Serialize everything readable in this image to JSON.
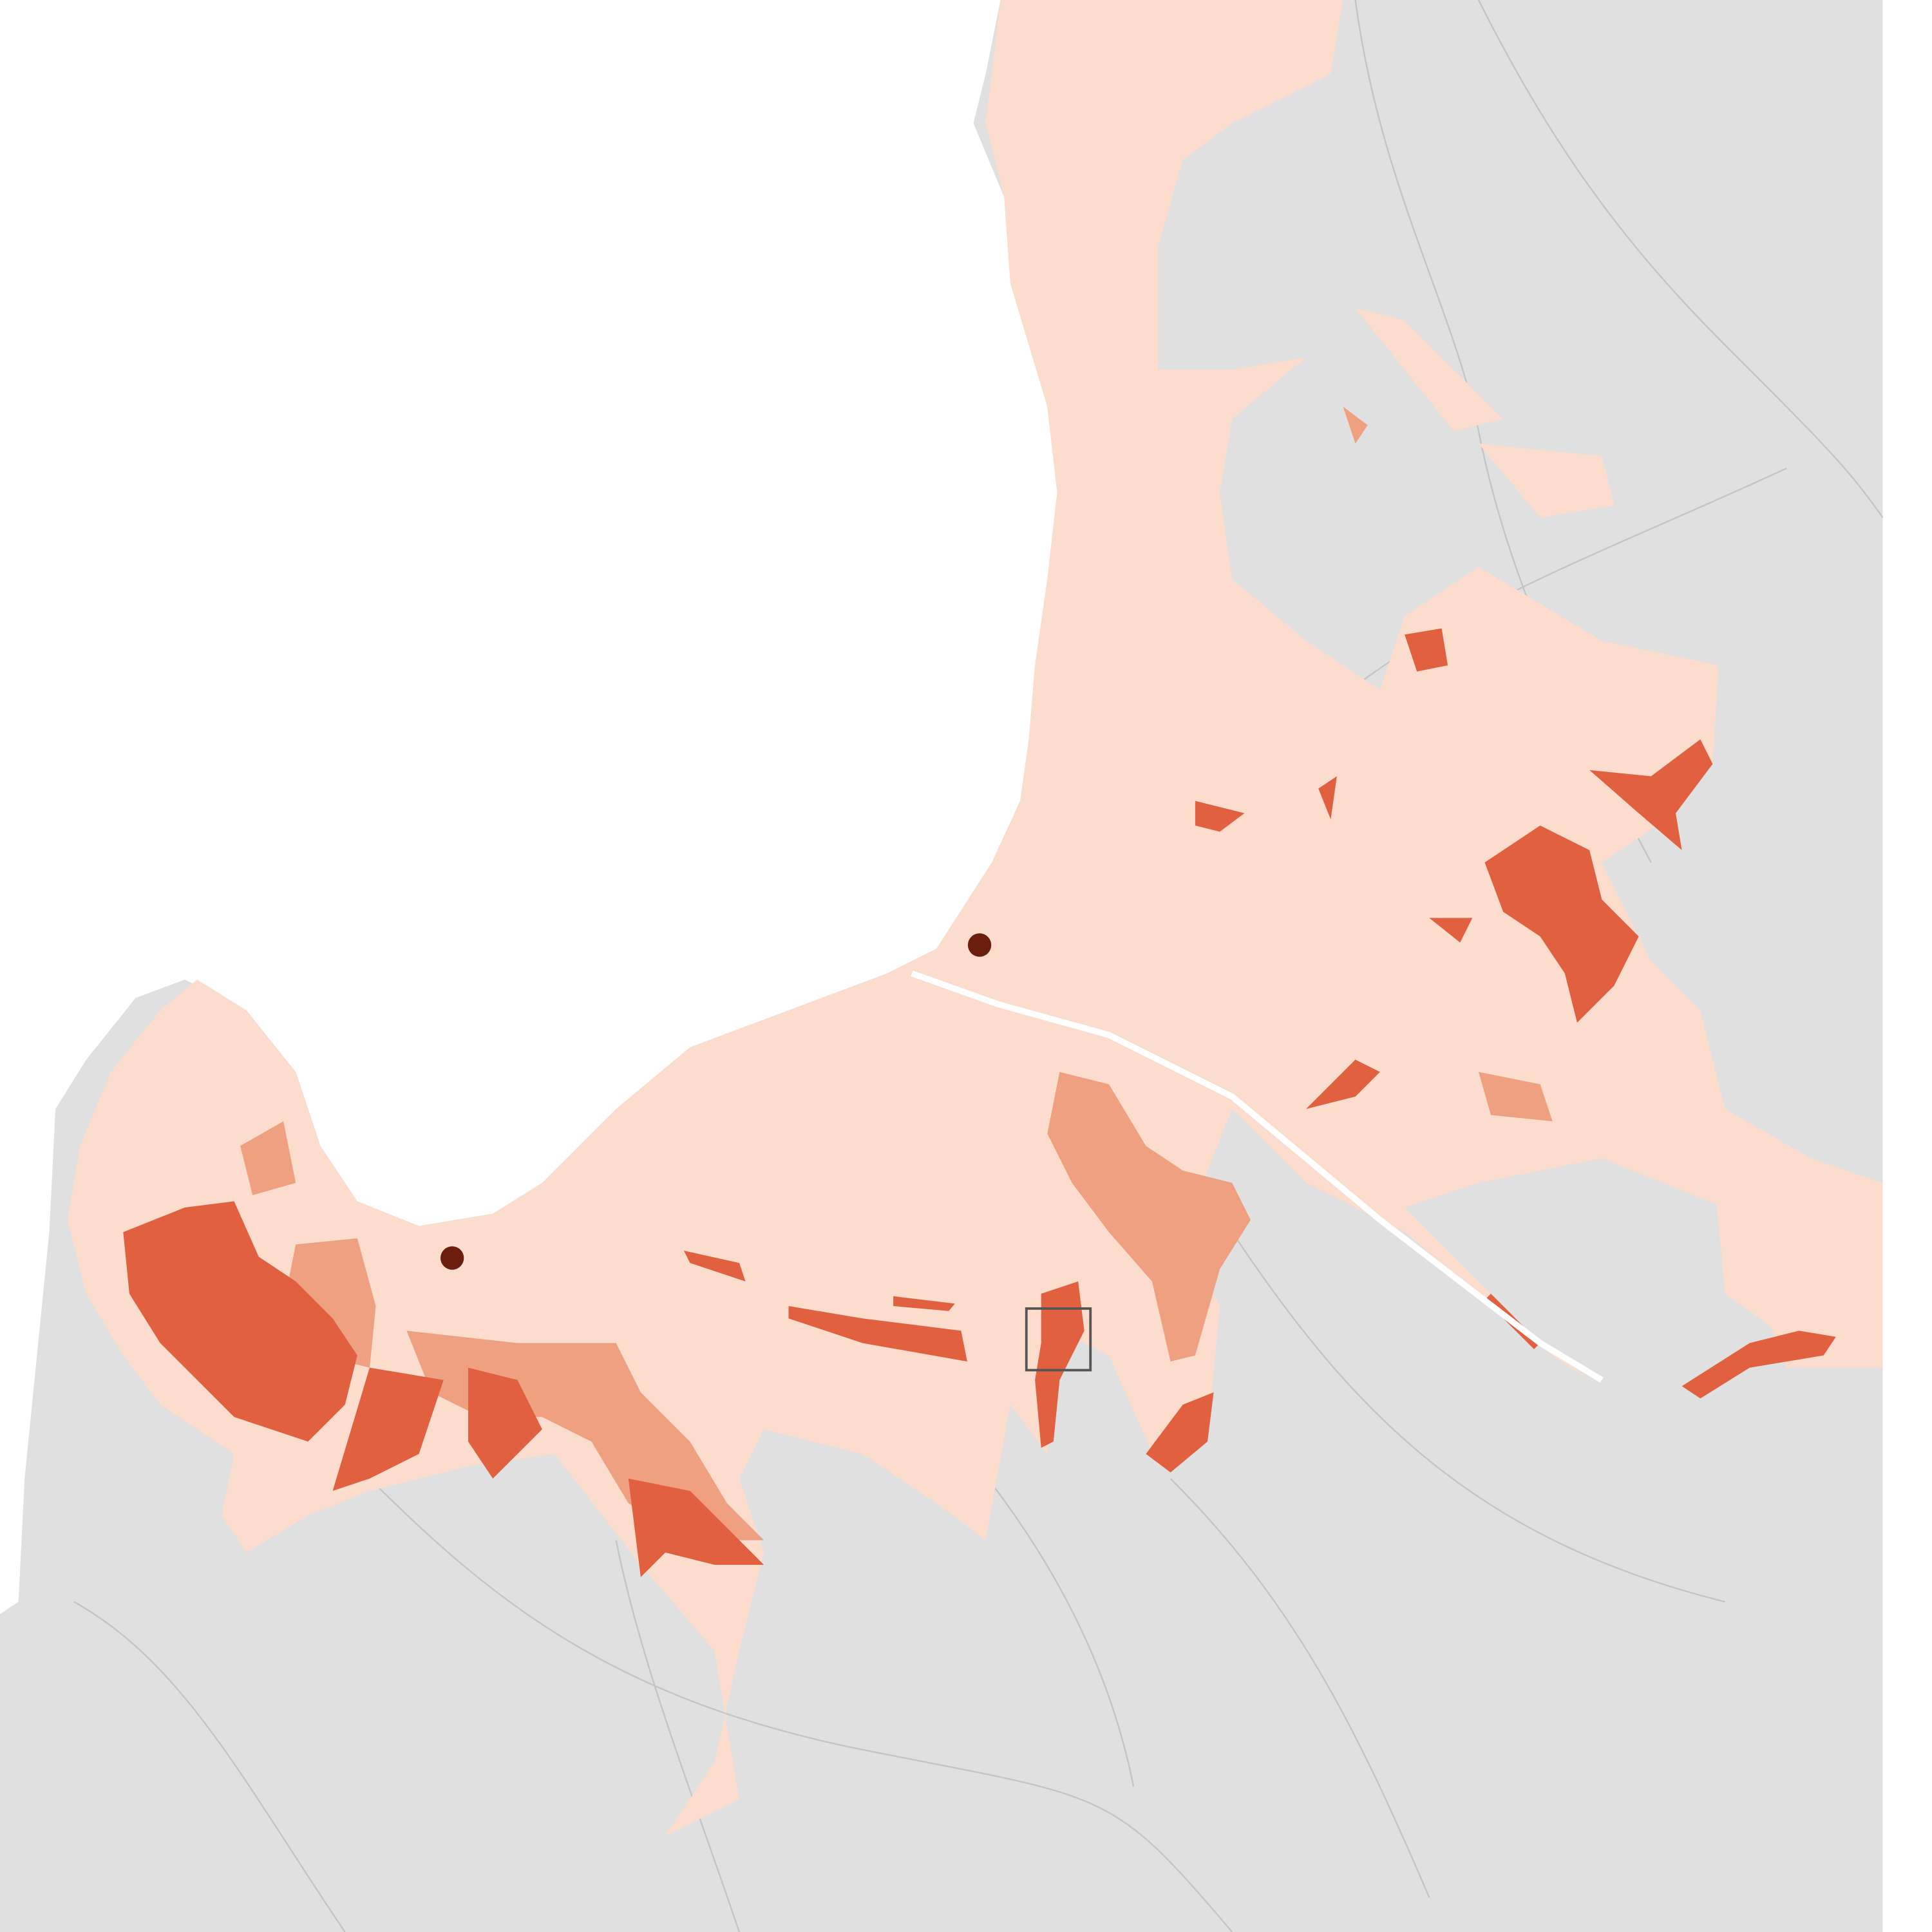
{
  "map": {
    "colors": {
      "sea": "#ffffff",
      "land": "#e0e0e0",
      "roads": "#c8c8c8",
      "urban": "#fbdccd",
      "burned_moderate": "#eea080",
      "burned_severe": "#e0603f",
      "marker": "#6b1e0e",
      "inset_box": "#555555"
    },
    "markers": [
      {
        "name": "marker-north"
      },
      {
        "name": "marker-west"
      }
    ],
    "inset_box": true
  }
}
